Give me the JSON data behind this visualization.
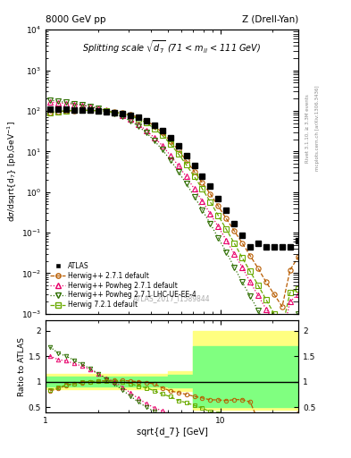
{
  "title_top_left": "8000 GeV pp",
  "title_top_right": "Z (Drell-Yan)",
  "plot_title": "Splitting scale $\\sqrt{d_7}$ (71 < m$_{ll}$ < 111 GeV)",
  "xlabel": "sqrt{d_7} [GeV]",
  "ylabel_main": "d$\\sigma$/dsqrt{d$_7$} [pb,GeV$^{-1}$]",
  "ylabel_ratio": "Ratio to ATLAS",
  "watermark": "ATLAS_2017_I1589844",
  "right_label1": "Rivet 3.1.10, ≥ 3.3M events",
  "right_label2": "mcplots.cern.ch [arXiv:1306.3436]",
  "xlim": [
    1.0,
    28.0
  ],
  "ylim_main": [
    0.001,
    10000.0
  ],
  "ylim_ratio": [
    0.4,
    2.2
  ],
  "atlas_x": [
    1.06,
    1.18,
    1.31,
    1.46,
    1.62,
    1.8,
    2.0,
    2.22,
    2.47,
    2.75,
    3.05,
    3.39,
    3.77,
    4.19,
    4.66,
    5.18,
    5.75,
    6.39,
    7.1,
    7.89,
    8.77,
    9.74,
    10.83,
    12.03,
    13.36,
    14.84,
    16.49,
    18.32,
    20.35,
    22.62,
    25.12,
    27.92
  ],
  "atlas_y": [
    110,
    110,
    108,
    107,
    105,
    103,
    100,
    97,
    91,
    86,
    79,
    70,
    58,
    45,
    33,
    22,
    14,
    8.0,
    4.5,
    2.5,
    1.4,
    0.7,
    0.35,
    0.17,
    0.085,
    0.045,
    0.055,
    0.045,
    0.045,
    0.045,
    0.045,
    0.065
  ],
  "hw271_x": [
    1.06,
    1.18,
    1.31,
    1.46,
    1.62,
    1.8,
    2.0,
    2.22,
    2.47,
    2.75,
    3.05,
    3.39,
    3.77,
    4.19,
    4.66,
    5.18,
    5.75,
    6.39,
    7.1,
    7.89,
    8.77,
    9.74,
    10.83,
    12.03,
    13.36,
    14.84,
    16.49,
    18.32,
    20.35,
    22.62,
    25.12,
    27.92
  ],
  "hw271_y": [
    90,
    95,
    100,
    102,
    103,
    103,
    101,
    99,
    93,
    88,
    80,
    70,
    57,
    43,
    29,
    18,
    11,
    6.0,
    3.2,
    1.7,
    0.9,
    0.45,
    0.22,
    0.11,
    0.055,
    0.027,
    0.013,
    0.006,
    0.003,
    0.0015,
    0.012,
    0.025
  ],
  "hw271pow_x": [
    1.06,
    1.18,
    1.31,
    1.46,
    1.62,
    1.8,
    2.0,
    2.22,
    2.47,
    2.75,
    3.05,
    3.39,
    3.77,
    4.19,
    4.66,
    5.18,
    5.75,
    6.39,
    7.1,
    7.89,
    8.77,
    9.74,
    10.83,
    12.03,
    13.36,
    14.84,
    16.49,
    18.32,
    20.35,
    22.62,
    25.12,
    27.92
  ],
  "hw271pow_y": [
    165,
    158,
    152,
    145,
    137,
    127,
    116,
    104,
    91,
    77,
    62,
    47,
    33,
    22,
    14,
    8.0,
    4.5,
    2.4,
    1.2,
    0.6,
    0.29,
    0.14,
    0.065,
    0.03,
    0.014,
    0.006,
    0.0028,
    0.0013,
    0.0006,
    0.00028,
    0.002,
    0.003
  ],
  "hw271powlhc_x": [
    1.06,
    1.18,
    1.31,
    1.46,
    1.62,
    1.8,
    2.0,
    2.22,
    2.47,
    2.75,
    3.05,
    3.39,
    3.77,
    4.19,
    4.66,
    5.18,
    5.75,
    6.39,
    7.1,
    7.89,
    8.77,
    9.74,
    10.83,
    12.03,
    13.36,
    14.84,
    16.49,
    18.32,
    20.35,
    22.62,
    25.12,
    27.92
  ],
  "hw271powlhc_y": [
    185,
    172,
    162,
    152,
    141,
    129,
    116,
    102,
    87,
    72,
    57,
    42,
    29,
    18.5,
    11,
    6.2,
    3.2,
    1.6,
    0.78,
    0.36,
    0.165,
    0.074,
    0.033,
    0.014,
    0.006,
    0.0027,
    0.0012,
    0.00052,
    0.00023,
    0.0001,
    0.0007,
    0.001
  ],
  "hw721_x": [
    1.06,
    1.18,
    1.31,
    1.46,
    1.62,
    1.8,
    2.0,
    2.22,
    2.47,
    2.75,
    3.05,
    3.39,
    3.77,
    4.19,
    4.66,
    5.18,
    5.75,
    6.39,
    7.1,
    7.89,
    8.77,
    9.74,
    10.83,
    12.03,
    13.36,
    14.84,
    16.49,
    18.32,
    20.35,
    22.62,
    25.12,
    27.92
  ],
  "hw721_y": [
    92,
    97,
    101,
    103,
    104,
    103,
    101,
    98,
    92,
    85,
    76,
    64,
    51,
    37,
    25,
    15.5,
    8.8,
    4.7,
    2.4,
    1.2,
    0.57,
    0.265,
    0.12,
    0.055,
    0.024,
    0.011,
    0.005,
    0.0022,
    0.001,
    0.00045,
    0.0034,
    0.004
  ],
  "color_atlas": "#000000",
  "color_hw271": "#b85c00",
  "color_hw271pow": "#e8006a",
  "color_hw271powlhc": "#2d6e00",
  "color_hw721": "#6aaa00",
  "band_yellow": "#ffff80",
  "band_green": "#80ff80"
}
